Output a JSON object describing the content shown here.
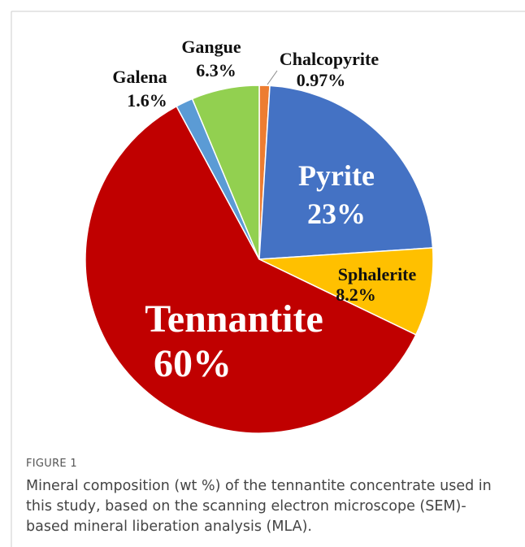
{
  "chart_data": {
    "type": "pie",
    "categories": [
      "Chalcopyrite",
      "Pyrite",
      "Sphalerite",
      "Tennantite",
      "Galena",
      "Gangue"
    ],
    "values": [
      0.97,
      23,
      8.2,
      60,
      1.6,
      6.3
    ],
    "value_labels": [
      "0.97%",
      "23%",
      "8.2%",
      "60%",
      "1.6%",
      "6.3%"
    ],
    "colors": [
      "#ed7d31",
      "#4472c4",
      "#ffc000",
      "#c00000",
      "#5b9bd5",
      "#92d050"
    ]
  },
  "figure": {
    "label": "FIGURE 1",
    "caption": "Mineral composition (wt %) of the tennantite concentrate used in this study, based on the scanning electron microscope (SEM)-based mineral liberation analysis (MLA)."
  }
}
